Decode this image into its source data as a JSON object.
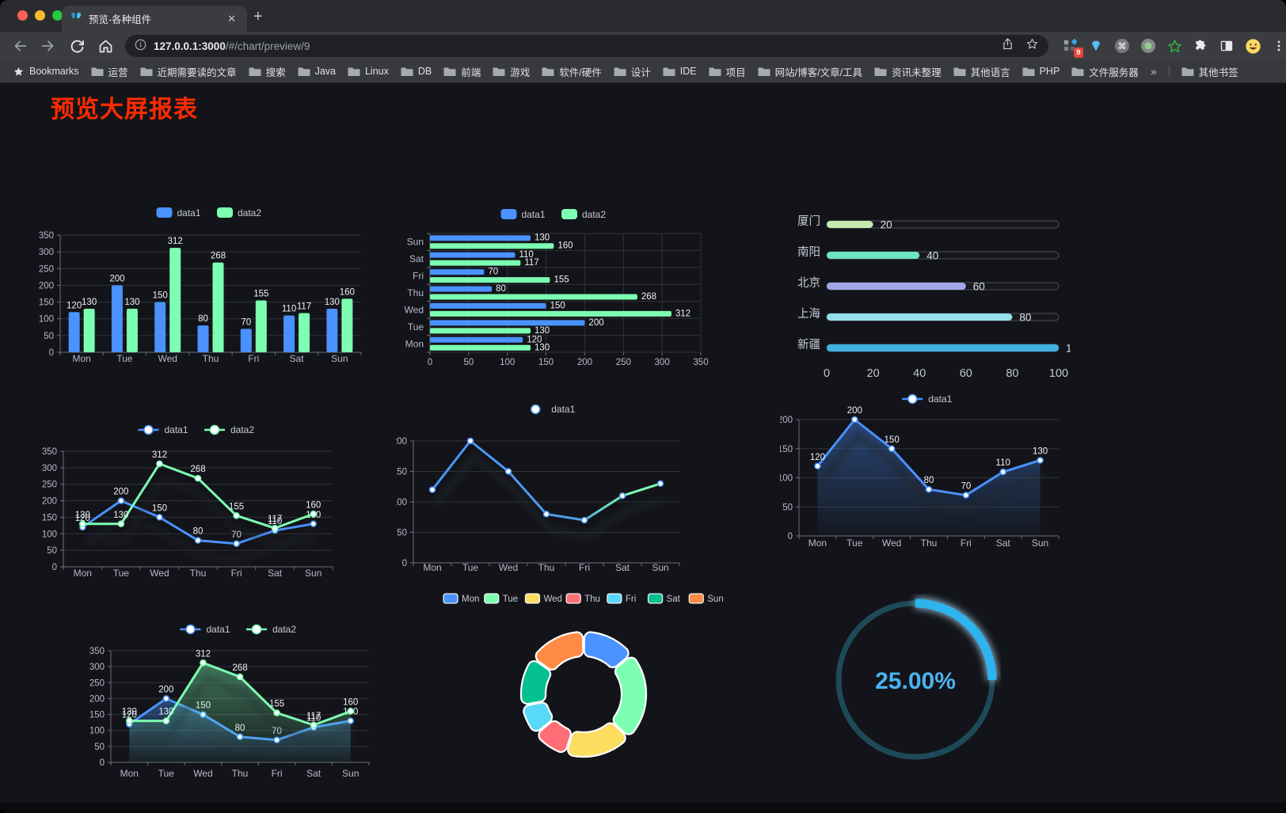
{
  "browser": {
    "tab_title": "预览-各种组件",
    "url_host": "127.0.0.1:3000",
    "url_path": "/#/chart/preview/9",
    "traffic": {
      "red": "#ff5f57",
      "yellow": "#febc2e",
      "green": "#28c840"
    },
    "extension_badge": "9"
  },
  "bookmarks": {
    "root_label": "Bookmarks",
    "items": [
      "运营",
      "近期需要读的文章",
      "搜索",
      "Java",
      "Linux",
      "DB",
      "前端",
      "游戏",
      "软件/硬件",
      "设计",
      "IDE",
      "项目",
      "网站/博客/文章/工具",
      "资讯未整理",
      "其他语言",
      "PHP",
      "文件服务器"
    ],
    "overflow": "»",
    "other_label": "其他书签"
  },
  "page": {
    "title": "预览大屏报表",
    "title_color": "#ff2b00"
  },
  "theme": {
    "axis_label": "#b9b8ce",
    "axis_line": "#6e7079",
    "grid_line": "#2f333b",
    "value_label": "#eef1f5"
  },
  "chart_data": [
    {
      "id": "bar",
      "type": "bar",
      "categories": [
        "Mon",
        "Tue",
        "Wed",
        "Thu",
        "Fri",
        "Sat",
        "Sun"
      ],
      "series": [
        {
          "name": "data1",
          "color": "#4992ff",
          "values": [
            120,
            200,
            150,
            80,
            70,
            110,
            130
          ]
        },
        {
          "name": "data2",
          "color": "#7cffb2",
          "values": [
            130,
            130,
            312,
            268,
            155,
            117,
            160
          ]
        }
      ],
      "ylim": [
        0,
        350
      ],
      "ystep": 50,
      "grid": true,
      "legend_position": "top"
    },
    {
      "id": "hbar",
      "type": "hbar",
      "categories": [
        "Mon",
        "Tue",
        "Wed",
        "Thu",
        "Fri",
        "Sat",
        "Sun"
      ],
      "series": [
        {
          "name": "data1",
          "color": "#4992ff",
          "values": [
            120,
            200,
            150,
            80,
            70,
            110,
            130
          ]
        },
        {
          "name": "data2",
          "color": "#7cffb2",
          "values": [
            130,
            130,
            312,
            268,
            155,
            117,
            160
          ]
        }
      ],
      "xlim": [
        0,
        350
      ],
      "xstep": 50,
      "grid": true,
      "legend_position": "top"
    },
    {
      "id": "progress",
      "type": "bar",
      "subtype": "progress-list",
      "categories": [
        "厦门",
        "南阳",
        "北京",
        "上海",
        "新疆"
      ],
      "values": [
        20,
        40,
        60,
        80,
        100
      ],
      "colors": [
        "#c4ebad",
        "#6be6c1",
        "#a0a7e6",
        "#96dee8",
        "#3fb1e3"
      ],
      "xticks": [
        0,
        20,
        40,
        60,
        80,
        100
      ],
      "xlim": [
        0,
        100
      ]
    },
    {
      "id": "line2",
      "type": "line",
      "categories": [
        "Mon",
        "Tue",
        "Wed",
        "Thu",
        "Fri",
        "Sat",
        "Sun"
      ],
      "series": [
        {
          "name": "data1",
          "color": "#4992ff",
          "values": [
            120,
            200,
            150,
            80,
            70,
            110,
            130
          ]
        },
        {
          "name": "data2",
          "color": "#7cffb2",
          "values": [
            130,
            130,
            312,
            268,
            155,
            117,
            160
          ]
        }
      ],
      "ylim": [
        0,
        350
      ],
      "ystep": 50,
      "labels": true,
      "legend_position": "top"
    },
    {
      "id": "gline",
      "type": "line",
      "categories": [
        "Mon",
        "Tue",
        "Wed",
        "Thu",
        "Fri",
        "Sat",
        "Sun"
      ],
      "series": [
        {
          "name": "data1",
          "color": "#4992ff",
          "color_end": "#7cffb2",
          "values": [
            120,
            200,
            150,
            80,
            70,
            110,
            130
          ]
        }
      ],
      "ylim": [
        0,
        200
      ],
      "ystep": 50,
      "labels": false,
      "gradient": true,
      "shadow": true,
      "legend_position": "top"
    },
    {
      "id": "area1",
      "type": "area",
      "categories": [
        "Mon",
        "Tue",
        "Wed",
        "Thu",
        "Fri",
        "Sat",
        "Sun"
      ],
      "series": [
        {
          "name": "data1",
          "color": "#4992ff",
          "values": [
            120,
            200,
            150,
            80,
            70,
            110,
            130
          ]
        }
      ],
      "ylim": [
        0,
        200
      ],
      "ystep": 50,
      "labels": true,
      "legend_position": "top"
    },
    {
      "id": "area2",
      "type": "area",
      "categories": [
        "Mon",
        "Tue",
        "Wed",
        "Thu",
        "Fri",
        "Sat",
        "Sun"
      ],
      "series": [
        {
          "name": "data1",
          "color": "#4992ff",
          "values": [
            120,
            200,
            150,
            80,
            70,
            110,
            130
          ]
        },
        {
          "name": "data2",
          "color": "#7cffb2",
          "values": [
            130,
            130,
            312,
            268,
            155,
            117,
            160
          ]
        }
      ],
      "ylim": [
        0,
        350
      ],
      "ystep": 50,
      "labels": true,
      "legend_position": "top"
    },
    {
      "id": "donut",
      "type": "pie",
      "categories": [
        "Mon",
        "Tue",
        "Wed",
        "Thu",
        "Fri",
        "Sat",
        "Sun"
      ],
      "values": [
        120,
        200,
        150,
        80,
        70,
        110,
        130
      ],
      "colors": [
        "#4992ff",
        "#7cffb2",
        "#fddd60",
        "#ff6e76",
        "#58d9f9",
        "#05c091",
        "#ff8a45"
      ],
      "inner_radius": true,
      "legend_position": "top"
    },
    {
      "id": "gauge",
      "type": "gauge",
      "value": 25,
      "max": 100,
      "display": "25.00%",
      "color": "#2db3ee",
      "track_color": "#1d4a58",
      "text_color": "#4ab2f0"
    }
  ]
}
